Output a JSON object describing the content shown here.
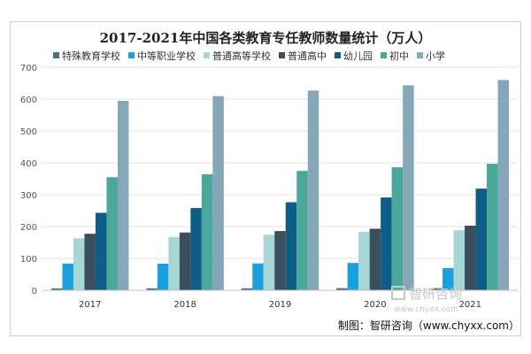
{
  "chart_data": {
    "type": "bar",
    "title": "2017-2021年中国各类教育专任教师数量统计（万人）",
    "categories": [
      "2017",
      "2018",
      "2019",
      "2020",
      "2021"
    ],
    "ylim": [
      0,
      700
    ],
    "yticks": [
      0,
      100,
      200,
      300,
      400,
      500,
      600,
      700
    ],
    "grid": true,
    "legend_position": "top",
    "series": [
      {
        "name": "特殊教育学校",
        "color": "#4a6f80",
        "values": [
          5.9,
          6.2,
          6.2,
          6.6,
          6.9
        ]
      },
      {
        "name": "中等职业学校",
        "color": "#1aa0dc",
        "values": [
          83.9,
          83.4,
          84.3,
          85.7,
          69.5
        ]
      },
      {
        "name": "普通高等学校",
        "color": "#a6d7d6",
        "values": [
          163.3,
          167.3,
          174.0,
          183.3,
          188.5
        ]
      },
      {
        "name": "普通高中",
        "color": "#3b4e5c",
        "values": [
          177.4,
          181.3,
          185.9,
          193.3,
          202.8
        ]
      },
      {
        "name": "幼儿园",
        "color": "#0d5d86",
        "values": [
          243.2,
          258.1,
          276.3,
          291.3,
          319.1
        ]
      },
      {
        "name": "初中",
        "color": "#4aa89a",
        "values": [
          354.9,
          363.9,
          374.7,
          386.1,
          397.1
        ]
      },
      {
        "name": "小学",
        "color": "#86a7b8",
        "values": [
          594.5,
          609.2,
          626.9,
          643.4,
          660.1
        ]
      }
    ]
  },
  "watermark": {
    "main": "智研咨询",
    "sub": "www.chyxx.com"
  },
  "credit": "制图：智研咨询（www.chyxx.com）"
}
